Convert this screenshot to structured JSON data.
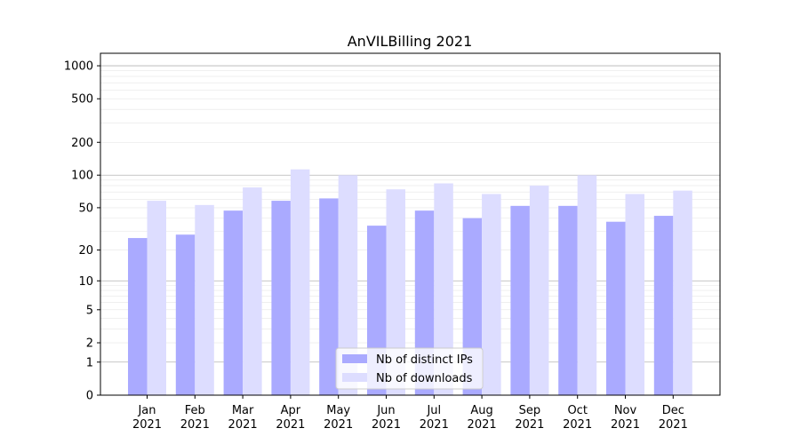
{
  "chart_data": {
    "type": "bar",
    "title": "AnVILBilling 2021",
    "xlabel": "",
    "ylabel": "",
    "yscale": "log(1+y)",
    "ylim": [
      0,
      1300
    ],
    "yticks": [
      0,
      1,
      2,
      5,
      10,
      20,
      50,
      100,
      200,
      500,
      1000
    ],
    "grid": true,
    "legend_position": "lower-center",
    "categories": [
      "Jan\n2021",
      "Feb\n2021",
      "Mar\n2021",
      "Apr\n2021",
      "May\n2021",
      "Jun\n2021",
      "Jul\n2021",
      "Aug\n2021",
      "Sep\n2021",
      "Oct\n2021",
      "Nov\n2021",
      "Dec\n2021"
    ],
    "series": [
      {
        "name": "Nb of distinct IPs",
        "color": "#aaaaff",
        "values": [
          26,
          28,
          47,
          58,
          61,
          34,
          47,
          40,
          52,
          52,
          37,
          42
        ]
      },
      {
        "name": "Nb of downloads",
        "color": "#ddddff",
        "values": [
          58,
          53,
          77,
          113,
          100,
          74,
          84,
          67,
          80,
          100,
          67,
          72
        ]
      }
    ]
  }
}
